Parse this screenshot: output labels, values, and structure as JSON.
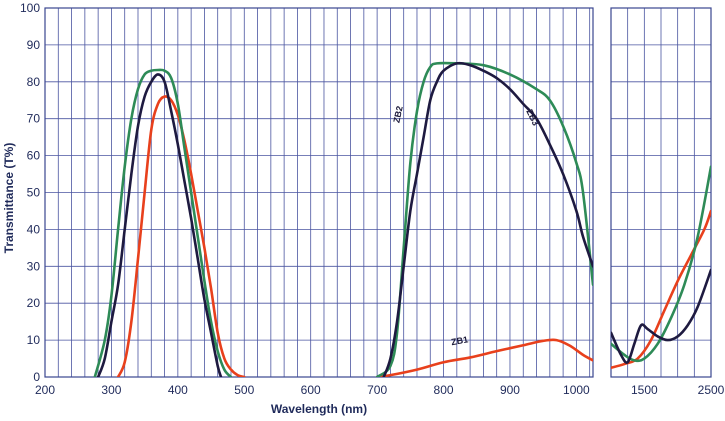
{
  "chart_data": {
    "type": "line",
    "xlabel": "Wavelength (nm)",
    "ylabel": "Transmittance (T%)",
    "ylim": [
      0,
      100
    ],
    "yticks": [
      0,
      10,
      20,
      30,
      40,
      50,
      60,
      70,
      80,
      90,
      100
    ],
    "grid": true,
    "panels": [
      {
        "name": "main",
        "xlim": [
          200,
          1025
        ],
        "xticks": [
          200,
          300,
          400,
          500,
          600,
          700,
          800,
          900,
          1000
        ],
        "minor_step": 20
      },
      {
        "name": "ir",
        "xlim": [
          1000,
          2500
        ],
        "xticks": [
          1500,
          2500
        ],
        "minor_step": 250
      }
    ],
    "series": [
      {
        "name": "ZB1",
        "color": "#e8401c",
        "segments": [
          {
            "panel": "main",
            "points": [
              [
                310,
                0
              ],
              [
                320,
                4
              ],
              [
                330,
                15
              ],
              [
                340,
                32
              ],
              [
                350,
                50
              ],
              [
                360,
                67
              ],
              [
                370,
                74
              ],
              [
                380,
                76
              ],
              [
                390,
                75
              ],
              [
                400,
                71
              ],
              [
                410,
                64
              ],
              [
                420,
                55
              ],
              [
                430,
                45
              ],
              [
                440,
                35
              ],
              [
                450,
                24
              ],
              [
                460,
                12
              ],
              [
                470,
                5
              ],
              [
                480,
                2
              ],
              [
                490,
                0.5
              ],
              [
                500,
                0
              ]
            ]
          },
          {
            "panel": "main",
            "points": [
              [
                700,
                0
              ],
              [
                720,
                0.5
              ],
              [
                760,
                2
              ],
              [
                800,
                4
              ],
              [
                840,
                5.3
              ],
              [
                880,
                7
              ],
              [
                920,
                8.6
              ],
              [
                950,
                9.8
              ],
              [
                970,
                10
              ],
              [
                990,
                8.5
              ],
              [
                1010,
                6
              ],
              [
                1025,
                4.5
              ]
            ]
          },
          {
            "panel": "ir",
            "points": [
              [
                1000,
                2.5
              ],
              [
                1200,
                3.5
              ],
              [
                1400,
                5
              ],
              [
                1600,
                10
              ],
              [
                1800,
                18
              ],
              [
                2000,
                26
              ],
              [
                2200,
                33
              ],
              [
                2400,
                40
              ],
              [
                2500,
                45
              ]
            ]
          }
        ]
      },
      {
        "name": "ZB2",
        "color": "#2e8b57",
        "segments": [
          {
            "panel": "main",
            "points": [
              [
                275,
                0
              ],
              [
                290,
                10
              ],
              [
                300,
                22
              ],
              [
                310,
                40
              ],
              [
                320,
                57
              ],
              [
                330,
                70
              ],
              [
                340,
                78
              ],
              [
                350,
                82
              ],
              [
                360,
                83
              ],
              [
                370,
                83.2
              ],
              [
                380,
                83
              ],
              [
                390,
                81
              ],
              [
                400,
                74
              ],
              [
                410,
                62
              ],
              [
                420,
                50
              ],
              [
                430,
                38
              ],
              [
                440,
                26
              ],
              [
                450,
                15
              ],
              [
                460,
                7
              ],
              [
                470,
                2
              ],
              [
                480,
                0
              ]
            ]
          },
          {
            "panel": "main",
            "points": [
              [
                700,
                0
              ],
              [
                720,
                3
              ],
              [
                730,
                12
              ],
              [
                740,
                35
              ],
              [
                750,
                58
              ],
              [
                760,
                72
              ],
              [
                770,
                80
              ],
              [
                780,
                84
              ],
              [
                790,
                85
              ],
              [
                820,
                85
              ],
              [
                860,
                84.5
              ],
              [
                900,
                82
              ],
              [
                940,
                78
              ],
              [
                960,
                75
              ],
              [
                980,
                68
              ],
              [
                1000,
                58
              ],
              [
                1010,
                50
              ],
              [
                1025,
                25
              ]
            ]
          },
          {
            "panel": "ir",
            "points": [
              [
                1000,
                9
              ],
              [
                1200,
                6
              ],
              [
                1350,
                4.5
              ],
              [
                1500,
                5
              ],
              [
                1700,
                9
              ],
              [
                1900,
                16
              ],
              [
                2100,
                25
              ],
              [
                2300,
                38
              ],
              [
                2500,
                57
              ]
            ]
          }
        ]
      },
      {
        "name": "ZB3",
        "color": "#1e1a40",
        "segments": [
          {
            "panel": "main",
            "points": [
              [
                280,
                0
              ],
              [
                290,
                5
              ],
              [
                300,
                15
              ],
              [
                310,
                25
              ],
              [
                320,
                40
              ],
              [
                330,
                55
              ],
              [
                340,
                68
              ],
              [
                350,
                76
              ],
              [
                360,
                80
              ],
              [
                370,
                82
              ],
              [
                380,
                80
              ],
              [
                390,
                72
              ],
              [
                400,
                63
              ],
              [
                410,
                53
              ],
              [
                420,
                43
              ],
              [
                430,
                32
              ],
              [
                440,
                21
              ],
              [
                450,
                12
              ],
              [
                460,
                3
              ],
              [
                465,
                0
              ]
            ]
          },
          {
            "panel": "main",
            "points": [
              [
                710,
                0
              ],
              [
                720,
                5
              ],
              [
                730,
                15
              ],
              [
                740,
                30
              ],
              [
                750,
                45
              ],
              [
                760,
                55
              ],
              [
                770,
                65
              ],
              [
                780,
                75
              ],
              [
                790,
                80
              ],
              [
                800,
                83
              ],
              [
                820,
                85
              ],
              [
                840,
                84.5
              ],
              [
                860,
                83
              ],
              [
                880,
                81
              ],
              [
                900,
                78
              ],
              [
                920,
                74
              ],
              [
                940,
                70
              ],
              [
                960,
                63
              ],
              [
                980,
                55
              ],
              [
                1000,
                45
              ],
              [
                1010,
                38
              ],
              [
                1025,
                30
              ]
            ]
          },
          {
            "panel": "ir",
            "points": [
              [
                1000,
                12
              ],
              [
                1150,
                6
              ],
              [
                1250,
                4
              ],
              [
                1350,
                9
              ],
              [
                1450,
                14
              ],
              [
                1550,
                13
              ],
              [
                1700,
                11
              ],
              [
                1850,
                10
              ],
              [
                2000,
                11
              ],
              [
                2150,
                14
              ],
              [
                2300,
                19
              ],
              [
                2500,
                29
              ]
            ]
          }
        ]
      }
    ],
    "curve_labels": [
      {
        "text": "ZB1",
        "x": 825,
        "y": 9,
        "angle": -10
      },
      {
        "text": "ZB2",
        "x": 736,
        "y": 71,
        "angle": -78
      },
      {
        "text": "ZB3",
        "x": 930,
        "y": 70,
        "angle": 64
      }
    ]
  }
}
